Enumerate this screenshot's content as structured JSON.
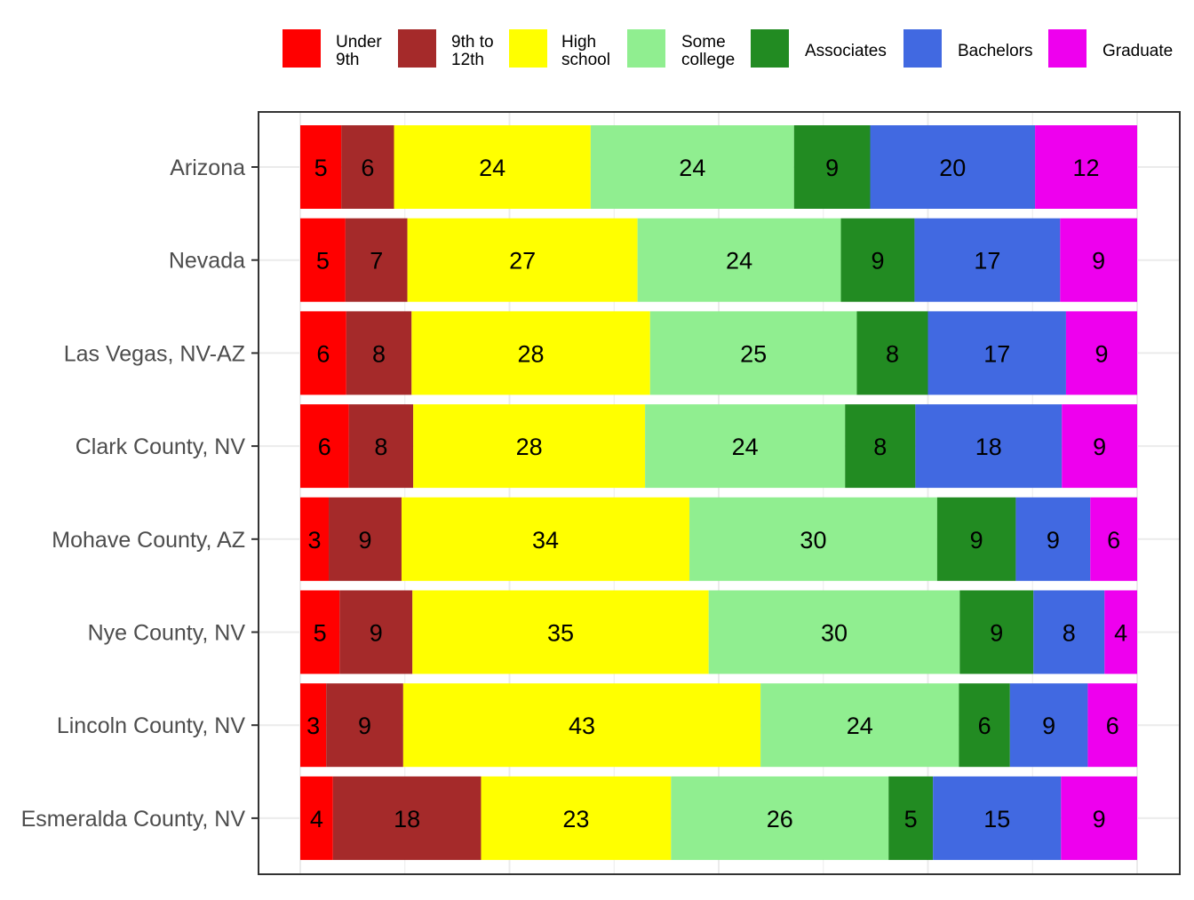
{
  "chart_data": {
    "type": "bar",
    "orientation": "horizontal",
    "stacked": true,
    "percent_stacked": true,
    "legend_position": "top",
    "grid": true,
    "series": [
      {
        "name_lines": [
          "Under",
          "9th"
        ],
        "color": "#FF0000"
      },
      {
        "name_lines": [
          "9th to",
          "12th"
        ],
        "color": "#A52A2A"
      },
      {
        "name_lines": [
          "High",
          "school"
        ],
        "color": "#FFFF00"
      },
      {
        "name_lines": [
          "Some",
          "college"
        ],
        "color": "#90EE90"
      },
      {
        "name_lines": [
          "Associates"
        ],
        "color": "#228B22"
      },
      {
        "name_lines": [
          "Bachelors"
        ],
        "color": "#4169E1"
      },
      {
        "name_lines": [
          "Graduate"
        ],
        "color": "#EE00EE"
      }
    ],
    "categories": [
      "Arizona",
      "Nevada",
      "Las Vegas, NV-AZ",
      "Clark County, NV",
      "Mohave County, AZ",
      "Nye County, NV",
      "Lincoln County, NV",
      "Esmeralda County, NV"
    ],
    "shares": [
      [
        4.9,
        6.3,
        23.5,
        24.3,
        9.1,
        19.7,
        12.2
      ],
      [
        5.4,
        7.4,
        27.5,
        24.3,
        8.8,
        17.4,
        9.2
      ],
      [
        5.5,
        7.8,
        28.5,
        24.7,
        8.5,
        16.5,
        8.5
      ],
      [
        5.8,
        7.7,
        27.7,
        23.9,
        8.4,
        17.5,
        9.0
      ],
      [
        3.4,
        8.7,
        34.4,
        29.6,
        9.4,
        8.9,
        5.6
      ],
      [
        4.7,
        8.7,
        35.4,
        30.0,
        8.8,
        8.5,
        3.9
      ],
      [
        3.1,
        9.2,
        42.7,
        23.7,
        6.1,
        9.3,
        5.9
      ],
      [
        3.9,
        17.7,
        22.7,
        26.0,
        5.3,
        15.3,
        9.1
      ]
    ],
    "labels": [
      [
        "5",
        "6",
        "24",
        "24",
        "9",
        "20",
        "12"
      ],
      [
        "5",
        "7",
        "27",
        "24",
        "9",
        "17",
        "9"
      ],
      [
        "6",
        "8",
        "28",
        "25",
        "8",
        "17",
        "9"
      ],
      [
        "6",
        "8",
        "28",
        "24",
        "8",
        "18",
        "9"
      ],
      [
        "3",
        "9",
        "34",
        "30",
        "9",
        "9",
        "6"
      ],
      [
        "5",
        "9",
        "35",
        "30",
        "9",
        "8",
        "4"
      ],
      [
        "3",
        "9",
        "43",
        "24",
        "6",
        "9",
        "6"
      ],
      [
        "4",
        "18",
        "23",
        "26",
        "5",
        "15",
        "9"
      ]
    ],
    "xlim": [
      0,
      100
    ],
    "title": "",
    "xlabel": "",
    "ylabel": ""
  }
}
